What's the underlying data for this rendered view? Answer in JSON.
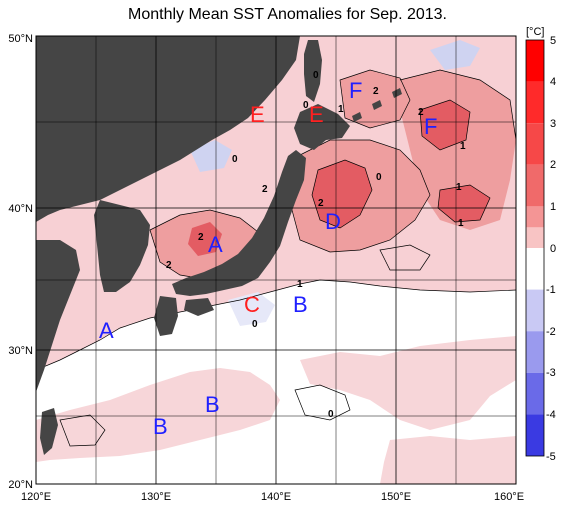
{
  "title": "Monthly Mean SST Anomalies for Sep. 2013.",
  "colors": {
    "land": "#454545",
    "warm_light": "#f7d0d4",
    "warm_mid": "#ee9e9f",
    "warm_strong": "#e35c63",
    "cool_light": "#cfd3f1",
    "red_label": "#ff2020",
    "blue_label": "#2020ff"
  },
  "axes": {
    "lat_labels": [
      "50°N",
      "40°N",
      "30°N",
      "20°N"
    ],
    "lon_labels": [
      "120°E",
      "130°E",
      "140°E",
      "150°E",
      "160°E"
    ]
  },
  "colorbar": {
    "unit": "[°C]",
    "tick_labels": [
      "5",
      "4",
      "3",
      "2",
      "1",
      "0",
      "-1",
      "-2",
      "-3",
      "-4",
      "-5"
    ],
    "colors": [
      "#ff0000",
      "#ff2a2a",
      "#f64848",
      "#f06a6a",
      "#f49595",
      "#f8c4c4",
      "#ffffff",
      "#c9c9f4",
      "#9a9aee",
      "#6a6ae8",
      "#3a3ae2",
      "#0000ff"
    ]
  },
  "region_labels": [
    {
      "id": "E",
      "text": "E",
      "color": "red"
    },
    {
      "id": "E2",
      "text": "E",
      "color": "red"
    },
    {
      "id": "F",
      "text": "F",
      "color": "blue"
    },
    {
      "id": "F2",
      "text": "F",
      "color": "blue"
    },
    {
      "id": "A",
      "text": "A",
      "color": "blue"
    },
    {
      "id": "A2",
      "text": "A",
      "color": "blue"
    },
    {
      "id": "D",
      "text": "D",
      "color": "blue"
    },
    {
      "id": "C",
      "text": "C",
      "color": "red"
    },
    {
      "id": "B",
      "text": "B",
      "color": "blue"
    },
    {
      "id": "B2",
      "text": "B",
      "color": "blue"
    },
    {
      "id": "B3",
      "text": "B",
      "color": "blue"
    }
  ],
  "contour_labels": [
    "0",
    "0",
    "2",
    "1",
    "2",
    "0",
    "2",
    "2",
    "0",
    "1",
    "1",
    "2",
    "2",
    "1",
    "1",
    "0",
    "0"
  ]
}
